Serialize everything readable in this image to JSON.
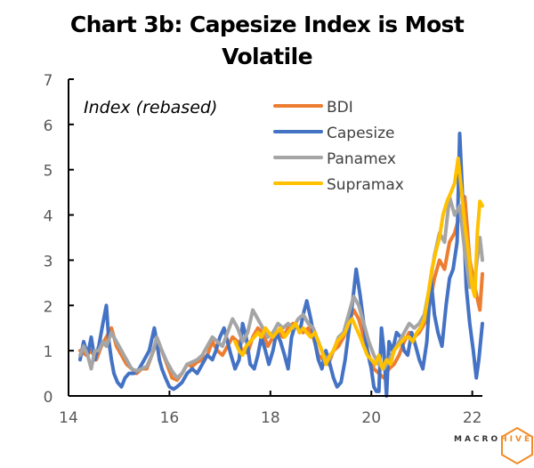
{
  "chart_data": {
    "type": "line",
    "title": "Chart 3b: Capesize Index is Most Volatile",
    "title_lines": [
      "Chart 3b: Capesize Index is Most",
      "Volatile"
    ],
    "annotation": "Index (rebased)",
    "xlabel": "",
    "ylabel": "",
    "xlim": [
      14,
      22.2
    ],
    "ylim": [
      0,
      7
    ],
    "x_ticks": [
      14,
      16,
      18,
      20,
      22
    ],
    "x_tick_labels": [
      "14",
      "16",
      "18",
      "20",
      "22"
    ],
    "y_ticks": [
      0,
      1,
      2,
      3,
      4,
      5,
      6,
      7
    ],
    "y_tick_labels": [
      "0",
      "1",
      "2",
      "3",
      "4",
      "5",
      "6",
      "7"
    ],
    "grid": false,
    "legend_position": "top-center",
    "series": [
      {
        "name": "BDI",
        "color": "#ED7D31",
        "x": [
          14.23,
          14.35,
          14.45,
          14.55,
          14.65,
          14.75,
          14.85,
          14.95,
          15.05,
          15.15,
          15.25,
          15.35,
          15.45,
          15.55,
          15.65,
          15.75,
          15.85,
          15.95,
          16.05,
          16.15,
          16.25,
          16.35,
          16.45,
          16.55,
          16.65,
          16.75,
          16.85,
          16.95,
          17.05,
          17.15,
          17.25,
          17.35,
          17.45,
          17.55,
          17.65,
          17.75,
          17.85,
          17.95,
          18.05,
          18.15,
          18.25,
          18.35,
          18.45,
          18.55,
          18.65,
          18.75,
          18.85,
          18.95,
          19.05,
          19.15,
          19.25,
          19.35,
          19.45,
          19.55,
          19.65,
          19.75,
          19.85,
          19.95,
          20.05,
          20.15,
          20.25,
          20.35,
          20.45,
          20.55,
          20.65,
          20.75,
          20.85,
          20.95,
          21.05,
          21.15,
          21.25,
          21.35,
          21.45,
          21.55,
          21.65,
          21.75,
          21.85,
          21.95,
          22.05,
          22.15,
          22.2
        ],
        "values": [
          1.0,
          0.9,
          1.0,
          0.8,
          1.1,
          1.3,
          1.5,
          1.1,
          0.9,
          0.7,
          0.6,
          0.5,
          0.6,
          0.6,
          0.9,
          1.2,
          1.0,
          0.7,
          0.4,
          0.35,
          0.5,
          0.7,
          0.65,
          0.75,
          0.8,
          0.9,
          1.2,
          1.0,
          0.9,
          1.1,
          1.3,
          1.2,
          1.0,
          0.95,
          1.3,
          1.5,
          1.4,
          1.1,
          1.3,
          1.4,
          1.3,
          1.5,
          1.6,
          1.5,
          1.4,
          1.5,
          1.3,
          0.9,
          0.8,
          0.7,
          1.0,
          1.1,
          1.3,
          1.6,
          1.9,
          1.7,
          1.3,
          0.9,
          0.6,
          0.5,
          0.4,
          0.6,
          0.7,
          0.9,
          1.2,
          1.4,
          1.3,
          1.4,
          1.6,
          2.0,
          2.6,
          3.0,
          2.8,
          3.4,
          3.6,
          4.0,
          4.4,
          3.0,
          2.4,
          1.9,
          2.7
        ]
      },
      {
        "name": "Capesize",
        "color": "#4472C4",
        "x": [
          14.23,
          14.3,
          14.38,
          14.45,
          14.52,
          14.6,
          14.68,
          14.75,
          14.8,
          14.85,
          14.9,
          14.97,
          15.05,
          15.12,
          15.2,
          15.3,
          15.4,
          15.5,
          15.6,
          15.7,
          15.75,
          15.8,
          15.85,
          15.92,
          16.0,
          16.08,
          16.15,
          16.25,
          16.35,
          16.45,
          16.55,
          16.65,
          16.75,
          16.85,
          16.92,
          17.0,
          17.08,
          17.15,
          17.22,
          17.3,
          17.38,
          17.45,
          17.52,
          17.6,
          17.68,
          17.75,
          17.82,
          17.9,
          17.97,
          18.05,
          18.12,
          18.2,
          18.28,
          18.35,
          18.42,
          18.5,
          18.58,
          18.65,
          18.72,
          18.8,
          18.88,
          18.95,
          19.02,
          19.1,
          19.18,
          19.25,
          19.32,
          19.4,
          19.48,
          19.55,
          19.62,
          19.7,
          19.78,
          19.85,
          19.92,
          20.0,
          20.05,
          20.1,
          20.15,
          20.2,
          20.25,
          20.3,
          20.35,
          20.42,
          20.5,
          20.58,
          20.65,
          20.72,
          20.8,
          20.88,
          20.95,
          21.02,
          21.1,
          21.18,
          21.25,
          21.32,
          21.4,
          21.48,
          21.55,
          21.62,
          21.7,
          21.75,
          21.8,
          21.88,
          21.95,
          22.02,
          22.08,
          22.13,
          22.2
        ],
        "values": [
          0.8,
          1.2,
          0.9,
          1.3,
          0.8,
          1.1,
          1.6,
          2.0,
          1.2,
          0.8,
          0.5,
          0.3,
          0.2,
          0.4,
          0.5,
          0.5,
          0.6,
          0.8,
          1.0,
          1.5,
          1.2,
          0.8,
          0.6,
          0.4,
          0.2,
          0.15,
          0.2,
          0.3,
          0.5,
          0.6,
          0.5,
          0.7,
          0.9,
          0.8,
          1.0,
          1.3,
          1.5,
          1.2,
          0.9,
          0.6,
          0.8,
          1.6,
          1.3,
          0.7,
          0.6,
          0.9,
          1.3,
          1.0,
          0.7,
          1.0,
          1.4,
          1.2,
          0.9,
          0.6,
          1.3,
          1.6,
          1.4,
          1.8,
          2.1,
          1.7,
          1.2,
          0.8,
          0.6,
          1.0,
          0.7,
          0.4,
          0.2,
          0.3,
          0.8,
          1.4,
          2.0,
          2.8,
          2.2,
          1.6,
          1.0,
          0.6,
          0.2,
          0.1,
          0.1,
          1.5,
          1.0,
          0.0,
          1.2,
          1.0,
          1.4,
          1.3,
          1.0,
          0.9,
          1.4,
          1.1,
          0.8,
          0.6,
          1.2,
          2.6,
          1.8,
          1.4,
          1.1,
          2.0,
          2.6,
          2.8,
          3.4,
          5.8,
          4.6,
          2.4,
          1.6,
          1.0,
          0.4,
          0.8,
          1.6
        ]
      },
      {
        "name": "Panamex",
        "color": "#A5A5A5",
        "x": [
          14.23,
          14.3,
          14.38,
          14.45,
          14.52,
          14.6,
          14.68,
          14.75,
          14.85,
          14.95,
          15.05,
          15.15,
          15.25,
          15.35,
          15.45,
          15.55,
          15.65,
          15.75,
          15.85,
          15.95,
          16.05,
          16.15,
          16.25,
          16.35,
          16.45,
          16.55,
          16.65,
          16.75,
          16.85,
          16.95,
          17.05,
          17.15,
          17.25,
          17.35,
          17.45,
          17.55,
          17.65,
          17.75,
          17.85,
          17.95,
          18.05,
          18.15,
          18.25,
          18.35,
          18.45,
          18.55,
          18.65,
          18.75,
          18.85,
          18.95,
          19.05,
          19.15,
          19.25,
          19.35,
          19.45,
          19.55,
          19.65,
          19.75,
          19.85,
          19.95,
          20.05,
          20.15,
          20.25,
          20.35,
          20.45,
          20.55,
          20.65,
          20.75,
          20.85,
          20.95,
          21.05,
          21.15,
          21.25,
          21.35,
          21.45,
          21.55,
          21.65,
          21.75,
          21.85,
          21.95,
          22.05,
          22.15,
          22.2
        ],
        "values": [
          0.9,
          1.1,
          0.9,
          0.6,
          1.0,
          1.0,
          1.2,
          1.1,
          1.4,
          1.2,
          1.0,
          0.8,
          0.6,
          0.55,
          0.6,
          0.65,
          0.9,
          1.3,
          1.0,
          0.75,
          0.55,
          0.4,
          0.5,
          0.7,
          0.75,
          0.8,
          0.9,
          1.1,
          1.3,
          1.2,
          1.1,
          1.4,
          1.7,
          1.5,
          1.2,
          1.4,
          1.9,
          1.7,
          1.5,
          1.3,
          1.4,
          1.6,
          1.5,
          1.6,
          1.5,
          1.7,
          1.8,
          1.6,
          1.5,
          1.2,
          0.9,
          0.8,
          1.0,
          1.3,
          1.4,
          1.8,
          2.2,
          2.0,
          1.6,
          1.2,
          0.9,
          0.7,
          0.6,
          0.8,
          1.0,
          1.2,
          1.4,
          1.6,
          1.5,
          1.6,
          1.8,
          2.4,
          3.1,
          3.6,
          3.4,
          4.4,
          4.0,
          4.2,
          3.2,
          2.4,
          2.6,
          3.5,
          3.0
        ]
      },
      {
        "name": "Supramax",
        "color": "#FFC000",
        "x": [
          17.3,
          17.38,
          17.45,
          17.52,
          17.6,
          17.68,
          17.75,
          17.82,
          17.9,
          17.97,
          18.05,
          18.12,
          18.2,
          18.28,
          18.35,
          18.42,
          18.5,
          18.58,
          18.65,
          18.72,
          18.8,
          18.88,
          18.95,
          19.02,
          19.1,
          19.18,
          19.25,
          19.32,
          19.4,
          19.48,
          19.55,
          19.62,
          19.7,
          19.78,
          19.85,
          19.92,
          20.0,
          20.08,
          20.15,
          20.22,
          20.3,
          20.38,
          20.45,
          20.52,
          20.6,
          20.68,
          20.75,
          20.82,
          20.9,
          20.97,
          21.05,
          21.12,
          21.2,
          21.28,
          21.35,
          21.42,
          21.5,
          21.58,
          21.65,
          21.72,
          21.78,
          21.85,
          21.92,
          22.0,
          22.05,
          22.1,
          22.15,
          22.2
        ],
        "values": [
          1.2,
          1.0,
          0.9,
          1.1,
          1.2,
          1.3,
          1.4,
          1.3,
          1.5,
          1.4,
          1.3,
          1.4,
          1.5,
          1.3,
          1.4,
          1.5,
          1.6,
          1.4,
          1.5,
          1.4,
          1.3,
          1.4,
          1.2,
          1.0,
          0.7,
          0.9,
          1.0,
          1.2,
          1.3,
          1.4,
          1.6,
          1.7,
          1.5,
          1.3,
          1.1,
          0.9,
          0.8,
          0.7,
          0.9,
          0.6,
          0.8,
          0.7,
          1.0,
          1.1,
          1.2,
          1.3,
          1.3,
          1.2,
          1.4,
          1.5,
          1.7,
          2.2,
          2.8,
          3.2,
          3.5,
          4.0,
          4.3,
          4.5,
          4.7,
          5.25,
          4.6,
          3.8,
          3.2,
          2.4,
          2.2,
          3.6,
          4.3,
          4.2
        ]
      }
    ]
  },
  "logo": {
    "part1": "MACRO",
    "part2": "HIVE"
  }
}
